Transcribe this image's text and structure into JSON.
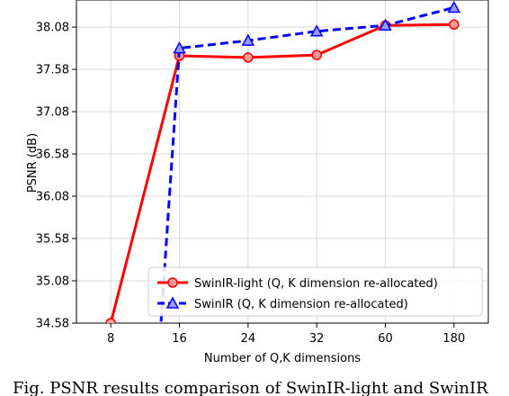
{
  "chart_data": {
    "type": "line",
    "xlabel": "Number of Q,K dimensions",
    "ylabel": "PSNR (dB)",
    "categories": [
      "8",
      "16",
      "24",
      "32",
      "60",
      "180"
    ],
    "yticks": [
      "34.58",
      "35.08",
      "35.58",
      "36.08",
      "36.58",
      "37.08",
      "37.58",
      "38.08"
    ],
    "ylim": [
      34.58,
      38.4
    ],
    "grid": true,
    "legend_position": "lower-right",
    "series": [
      {
        "name": "SwinIR-light (Q, K dimension re-allocated)",
        "color": "#ff0000",
        "linestyle": "solid",
        "marker": "circle",
        "values": [
          34.58,
          37.74,
          37.72,
          37.75,
          38.1,
          38.11
        ]
      },
      {
        "name": "SwinIR (Q, K dimension re-allocated)",
        "color": "#0000ff",
        "linestyle": "dashed",
        "marker": "triangle",
        "note_first_point": "line enters from below the axis between 8 and 16",
        "values": [
          34.45,
          37.83,
          37.92,
          38.03,
          38.1,
          38.31
        ]
      }
    ]
  },
  "caption": "Fig. PSNR results comparison of SwinIR-light and SwinIR"
}
